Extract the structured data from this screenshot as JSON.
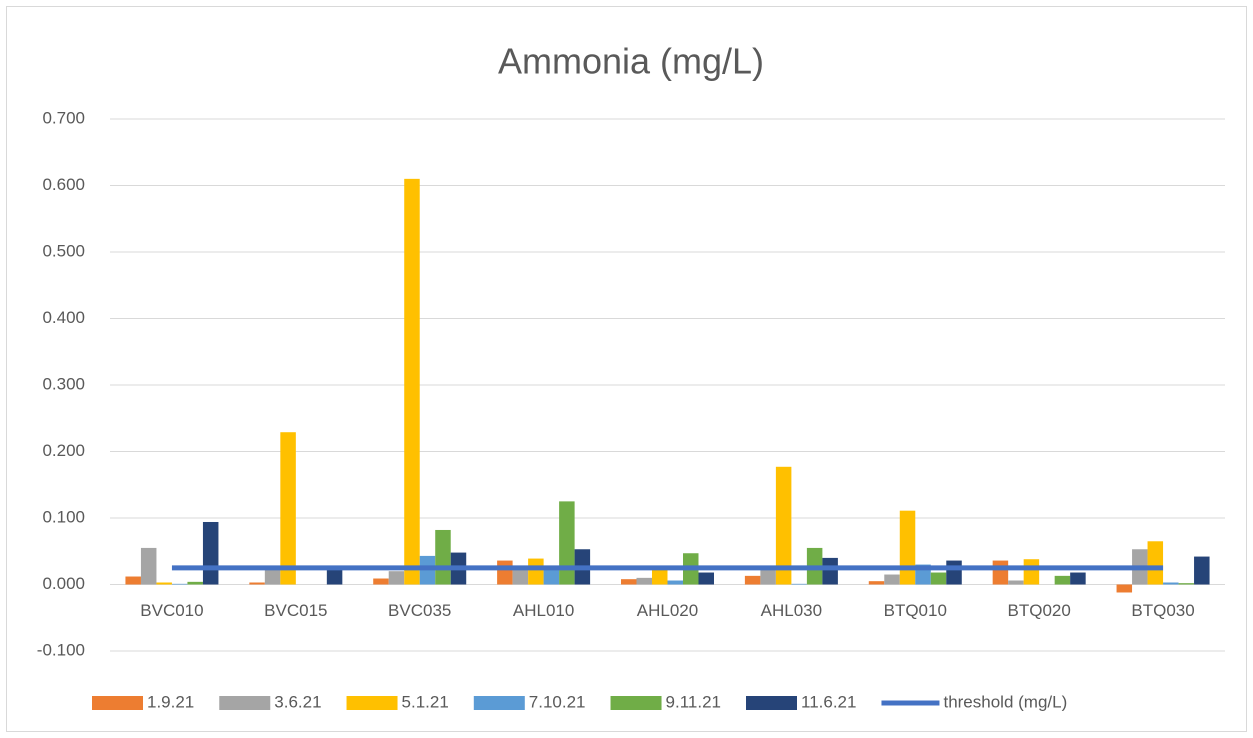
{
  "chart_data": {
    "type": "bar",
    "title": "Ammonia (mg/L)",
    "categories": [
      "BVC010",
      "BVC015",
      "BVC035",
      "AHL010",
      "AHL020",
      "AHL030",
      "BTQ010",
      "BTQ020",
      "BTQ030"
    ],
    "series": [
      {
        "name": "1.9.21",
        "color": "#ed7d31",
        "values": [
          0.012,
          0.003,
          0.009,
          0.036,
          0.008,
          0.013,
          0.005,
          0.036,
          -0.012
        ]
      },
      {
        "name": "3.6.21",
        "color": "#a5a5a5",
        "values": [
          0.055,
          0.025,
          0.02,
          0.028,
          0.01,
          0.022,
          0.015,
          0.006,
          0.053
        ]
      },
      {
        "name": "5.1.21",
        "color": "#ffc000",
        "values": [
          0.003,
          0.229,
          0.61,
          0.039,
          0.022,
          0.177,
          0.111,
          0.038,
          0.065
        ]
      },
      {
        "name": "7.10.21",
        "color": "#5b9bd5",
        "values": [
          0.001,
          0.0,
          0.043,
          0.025,
          0.006,
          0.001,
          0.03,
          0.0,
          0.003
        ]
      },
      {
        "name": "9.11.21",
        "color": "#70ad47",
        "values": [
          0.004,
          0.0,
          0.082,
          0.125,
          0.047,
          0.055,
          0.018,
          0.013,
          0.002
        ]
      },
      {
        "name": "11.6.21",
        "color": "#264478",
        "values": [
          0.094,
          0.022,
          0.048,
          0.053,
          0.018,
          0.04,
          0.036,
          0.018,
          0.042
        ]
      },
      {
        "name": "threshold (mg/L)",
        "color": "#4472c4",
        "type": "line",
        "values": [
          0.025,
          0.025,
          0.025,
          0.025,
          0.025,
          0.025,
          0.025,
          0.025,
          0.025
        ]
      }
    ],
    "ylim": [
      -0.1,
      0.7
    ],
    "yticks": [
      {
        "value": -0.1,
        "label": "-0.100"
      },
      {
        "value": 0,
        "label": "0.000"
      },
      {
        "value": 0.1,
        "label": "0.100"
      },
      {
        "value": 0.2,
        "label": "0.200"
      },
      {
        "value": 0.3,
        "label": "0.300"
      },
      {
        "value": 0.4,
        "label": "0.400"
      },
      {
        "value": 0.5,
        "label": "0.500"
      },
      {
        "value": 0.6,
        "label": "0.600"
      },
      {
        "value": 0.7,
        "label": "0.700"
      }
    ],
    "grid": true,
    "legend": "bottom"
  }
}
